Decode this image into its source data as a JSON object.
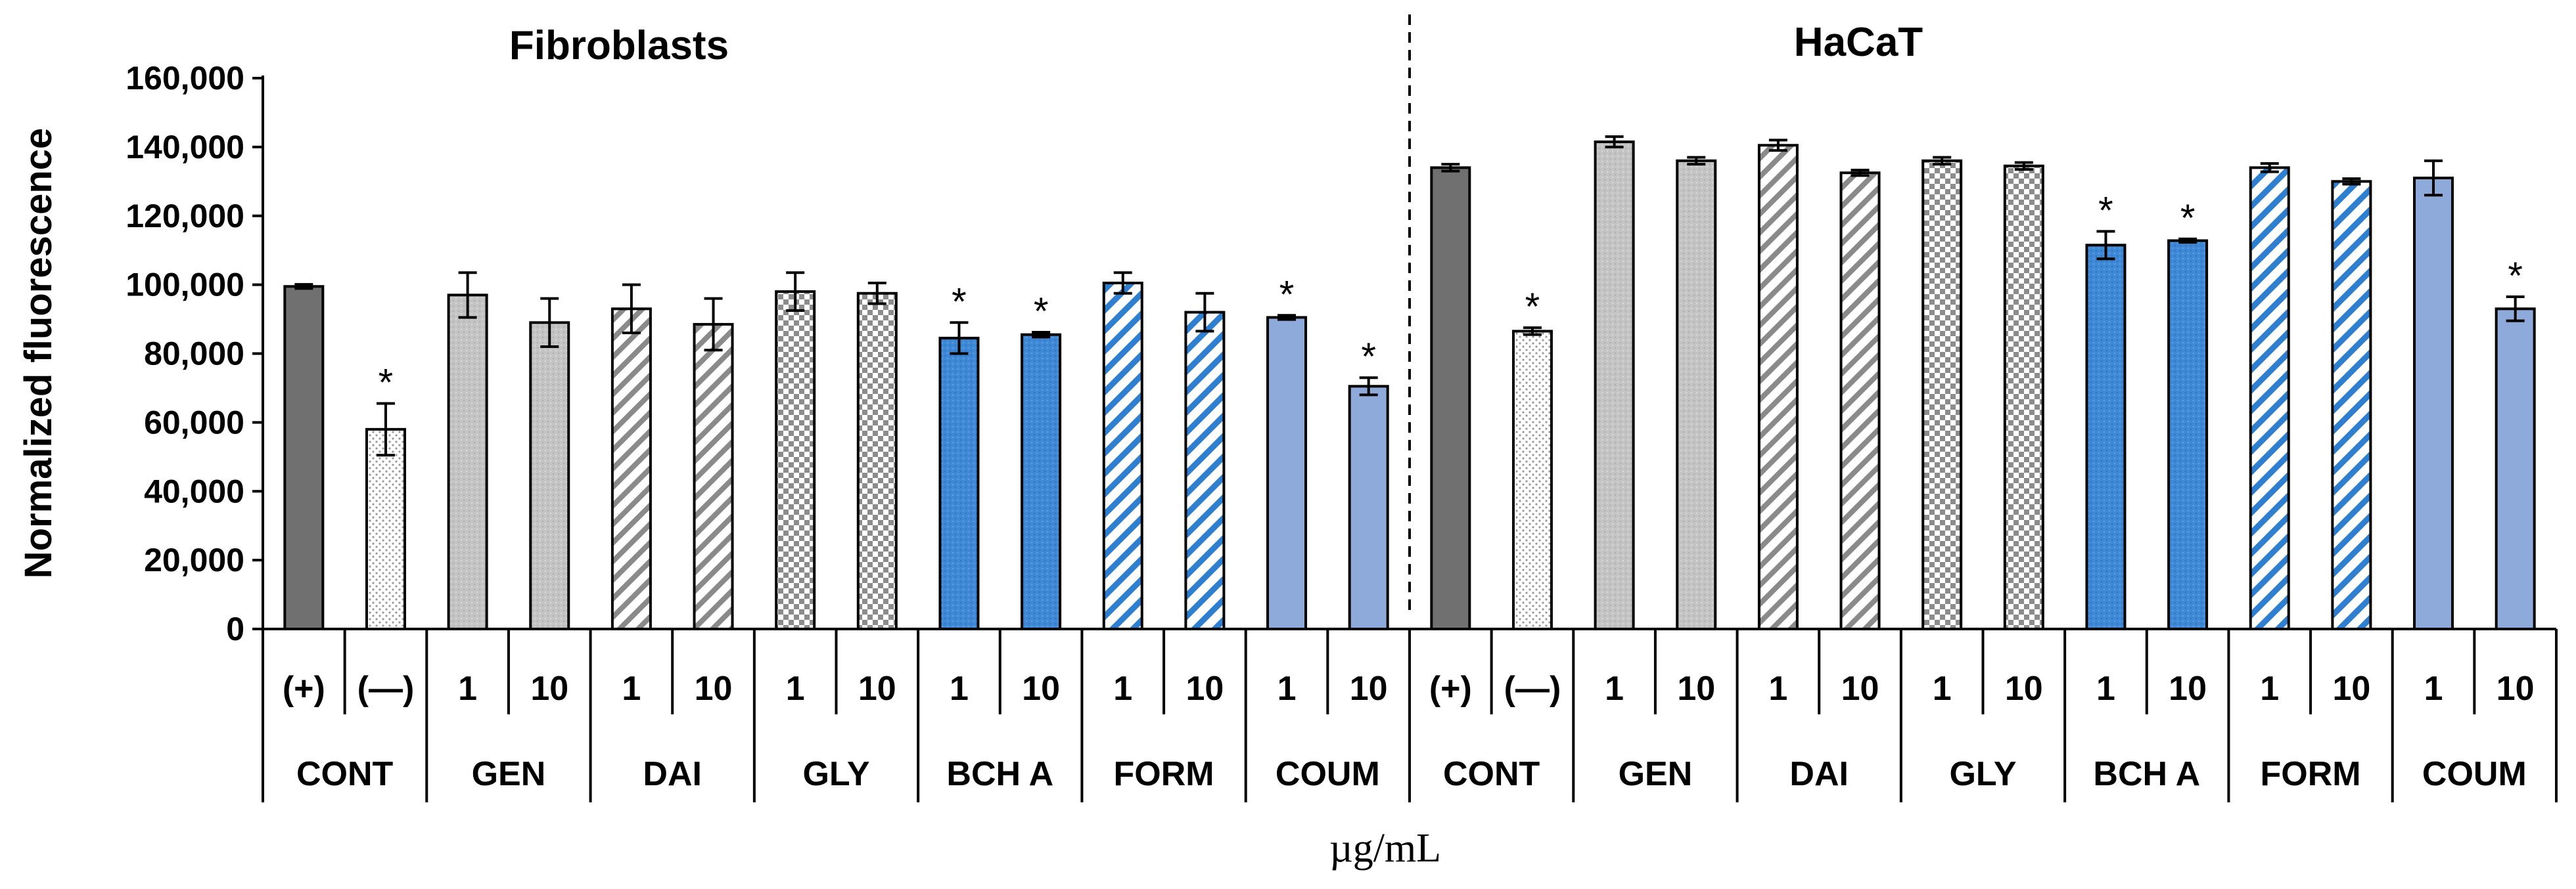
{
  "chart_data": {
    "type": "bar",
    "ylabel": "Normalized fluorescence",
    "xlabel": "µg/mL",
    "ylim": [
      0,
      160000
    ],
    "yticks": [
      0,
      20000,
      40000,
      60000,
      80000,
      100000,
      120000,
      140000,
      160000
    ],
    "ytick_labels": [
      "0",
      "20,000",
      "40,000",
      "60,000",
      "80,000",
      "100,000",
      "120,000",
      "140,000",
      "160,000"
    ],
    "group_titles": [
      "Fibroblasts",
      "HaCaT"
    ],
    "compound_labels": [
      "CONT",
      "GEN",
      "DAI",
      "GLY",
      "BCH A",
      "FORM",
      "COUM",
      "CONT",
      "GEN",
      "DAI",
      "GLY",
      "BCH A",
      "FORM",
      "COUM"
    ],
    "bar_labels": [
      "(+)",
      "(—)",
      "1",
      "10",
      "1",
      "10",
      "1",
      "10",
      "1",
      "10",
      "1",
      "10",
      "1",
      "10",
      "(+)",
      "(—)",
      "1",
      "10",
      "1",
      "10",
      "1",
      "10",
      "1",
      "10",
      "1",
      "10",
      "1",
      "10"
    ],
    "significance_marker": "*",
    "values": [
      99500,
      58000,
      97000,
      89000,
      93000,
      88500,
      98000,
      97500,
      84500,
      85500,
      100500,
      92000,
      90500,
      70500,
      134000,
      86500,
      141500,
      136000,
      140500,
      132500,
      136000,
      134500,
      111500,
      112800,
      134000,
      130000,
      131000,
      93000
    ],
    "errors": [
      600,
      7500,
      6500,
      7000,
      7000,
      7500,
      5500,
      3000,
      4500,
      700,
      3000,
      5500,
      600,
      2500,
      1000,
      1000,
      1500,
      1000,
      1500,
      800,
      1000,
      1000,
      4000,
      500,
      1200,
      800,
      5000,
      3500
    ],
    "significant": [
      false,
      true,
      false,
      false,
      false,
      false,
      false,
      false,
      true,
      true,
      false,
      false,
      true,
      true,
      false,
      true,
      false,
      false,
      false,
      false,
      false,
      false,
      true,
      true,
      false,
      false,
      false,
      true
    ],
    "patterns": [
      "dark",
      "dots",
      "light",
      "light",
      "diag-gray",
      "diag-gray",
      "checker",
      "checker",
      "blue-dots",
      "blue-dots",
      "diag-blue",
      "diag-blue",
      "blue",
      "blue",
      "dark",
      "dots",
      "light",
      "light",
      "diag-gray",
      "diag-gray",
      "checker",
      "checker",
      "blue-dots",
      "blue-dots",
      "diag-blue",
      "diag-blue",
      "blue",
      "blue"
    ]
  }
}
